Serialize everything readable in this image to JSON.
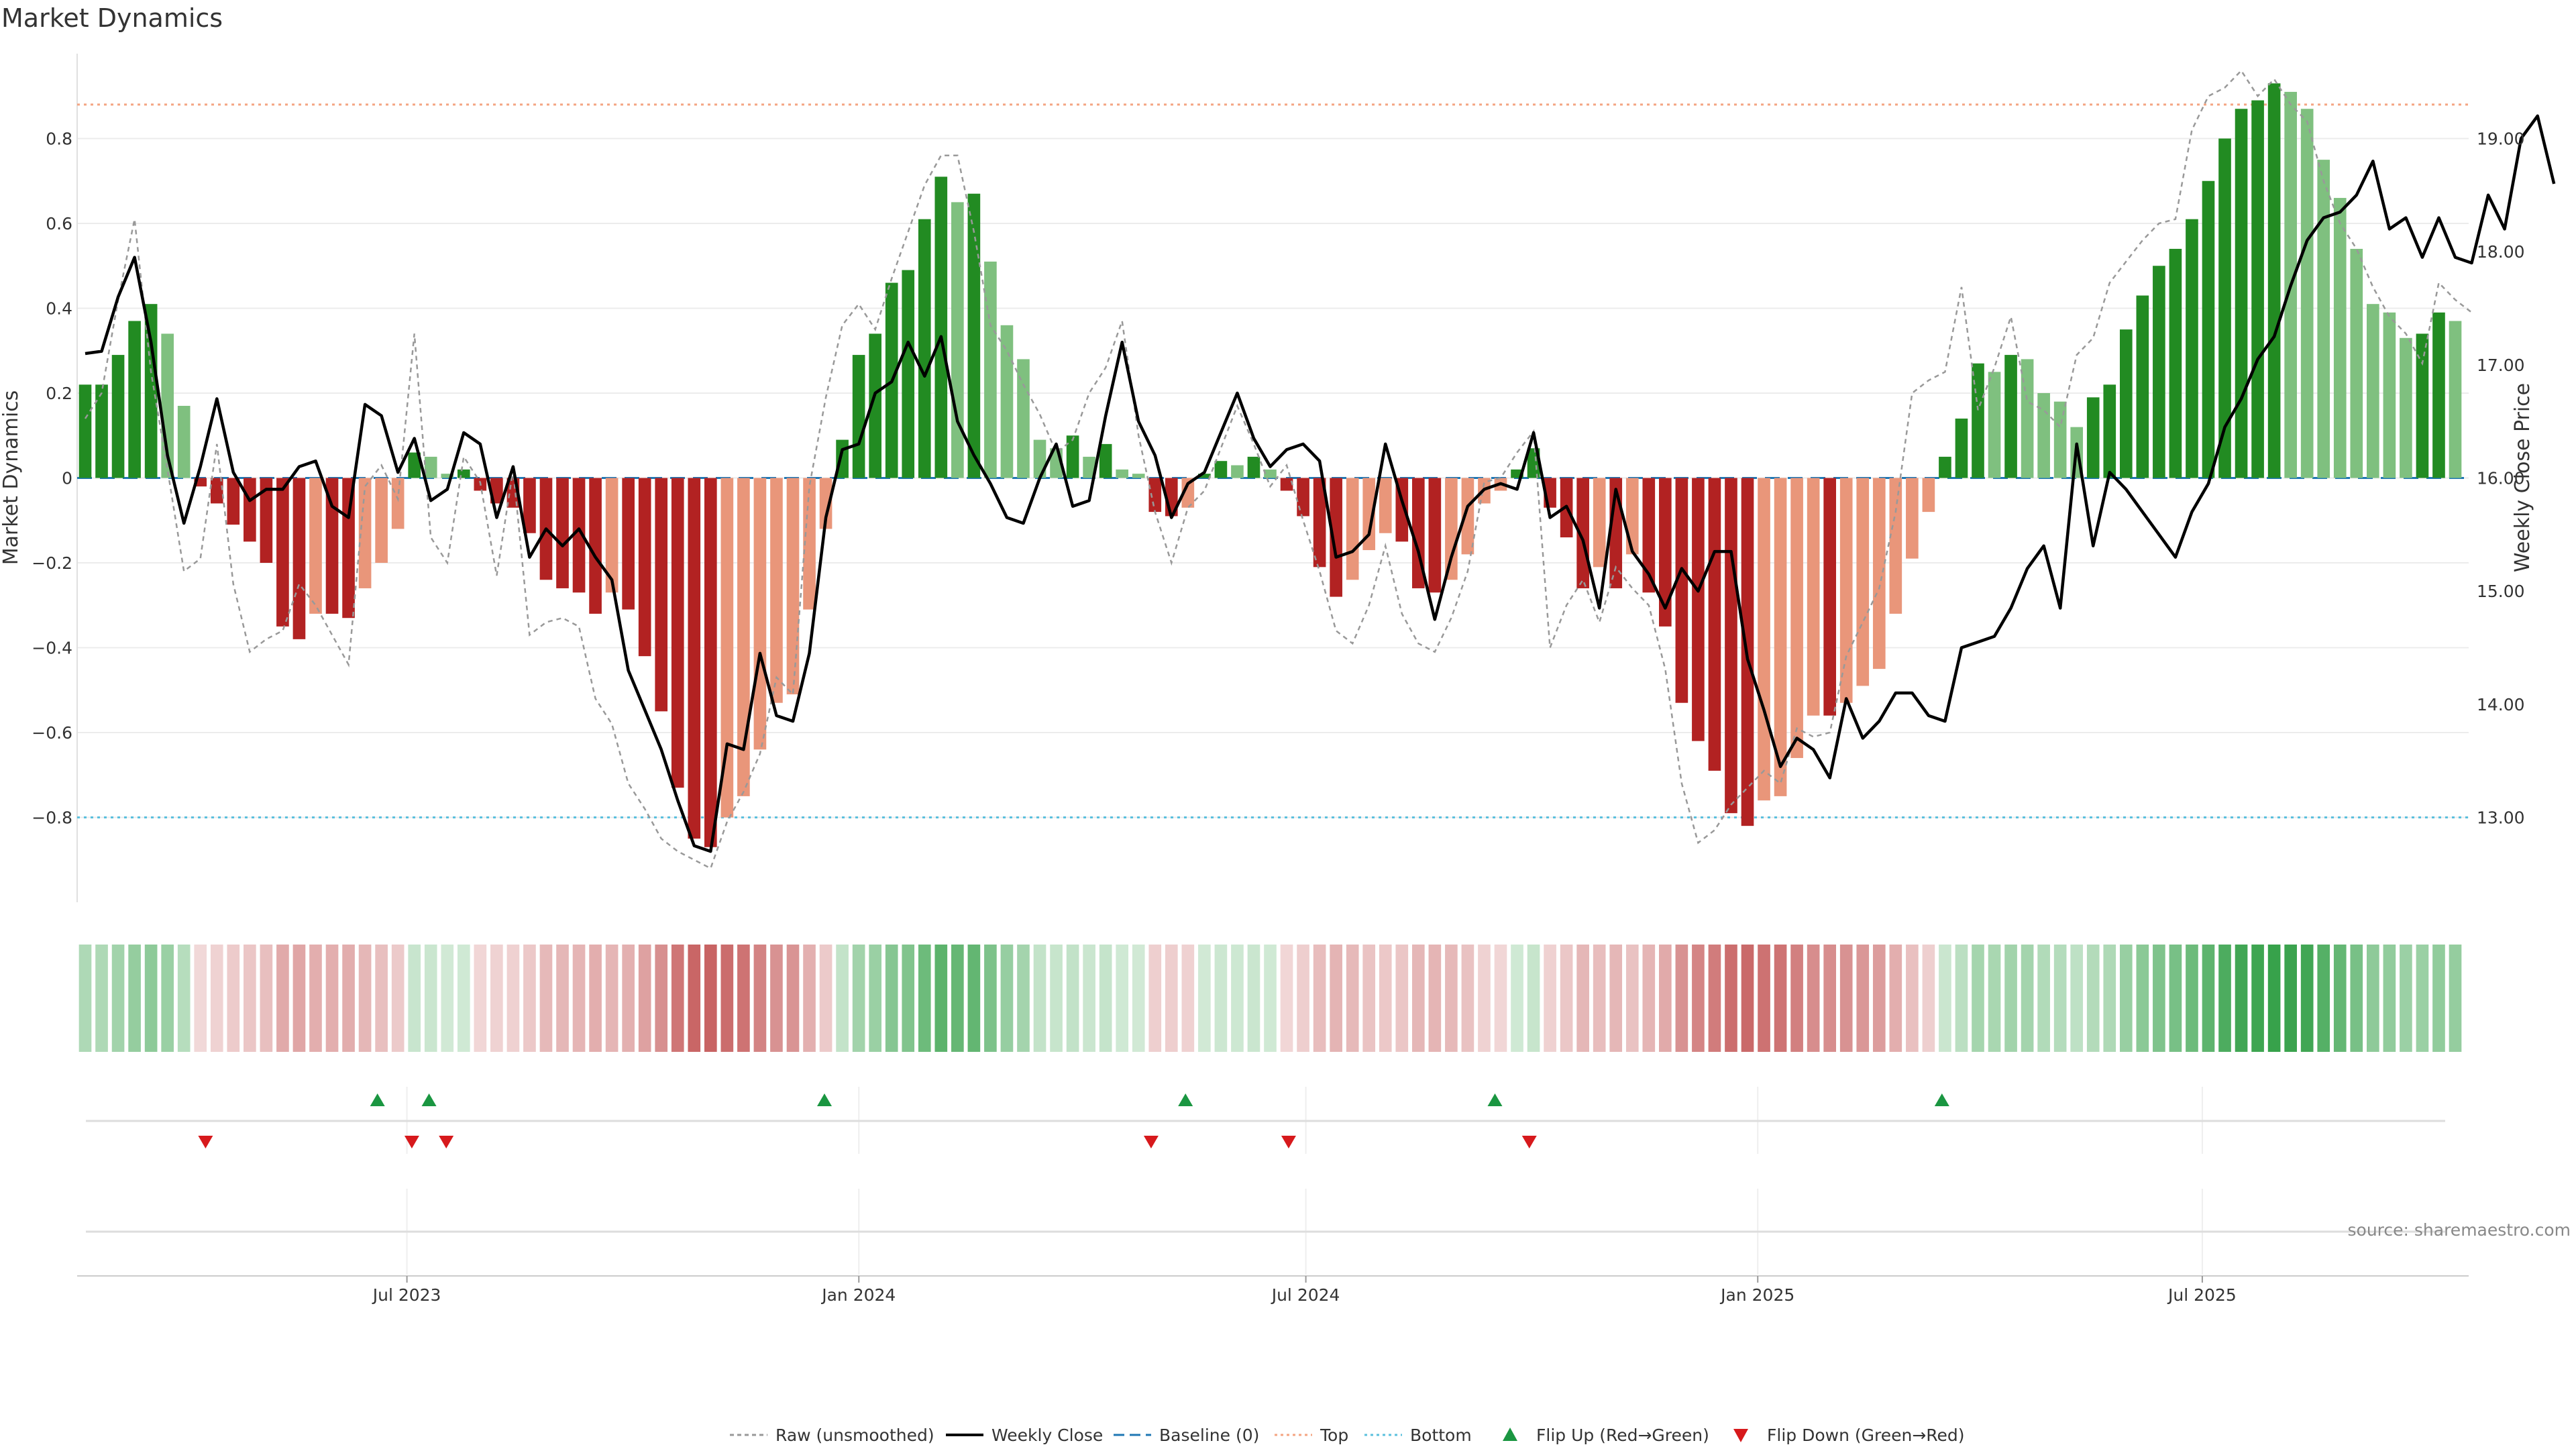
{
  "title": "Market Dynamics",
  "source_note": "source: sharemaestro.com",
  "colors": {
    "strong_green": "#228B22",
    "light_green": "#7FC07F",
    "strong_red": "#B22222",
    "light_red": "#E9967A",
    "close_line": "#000000",
    "raw_line": "#999999",
    "baseline": "#1F77B4",
    "top": "#F4A582",
    "bottom": "#5BC0DE",
    "flip_up": "#1A9641",
    "flip_down": "#D7191C"
  },
  "chart_data": {
    "type": "bar+line",
    "title": "Market Dynamics",
    "ylabel_left": "Market Dynamics",
    "ylabel_right": "Weekly Close Price",
    "y_left_range": [
      -1.0,
      1.0
    ],
    "y_left_ticks": [
      -0.8,
      -0.6,
      -0.4,
      -0.2,
      0,
      0.2,
      0.4,
      0.6,
      0.8
    ],
    "y_left_tick_labels": [
      "−0.8",
      "−0.6",
      "−0.4",
      "−0.2",
      "0",
      "0.2",
      "0.4",
      "0.6",
      "0.8"
    ],
    "y_right_range": [
      12.25,
      19.75
    ],
    "y_right_ticks": [
      13,
      14,
      15,
      16,
      17,
      18,
      19
    ],
    "y_right_tick_labels": [
      "13.00",
      "14.00",
      "15.00",
      "16.00",
      "17.00",
      "18.00",
      "19.00"
    ],
    "x_start": "2023-02-20",
    "x_end": "2025-10-12",
    "x_ticks": [
      "2023-07-01",
      "2024-01-01",
      "2024-07-01",
      "2025-01-01",
      "2025-07-01"
    ],
    "x_tick_labels": [
      "Jul 2023",
      "Jan 2024",
      "Jul 2024",
      "Jan 2025",
      "Jul 2025"
    ],
    "top_level": 0.88,
    "bottom_level": -0.8,
    "baseline_level": 0,
    "grid": true,
    "legend_position": "bottom-center",
    "legend": [
      "Raw (unsmoothed)",
      "Weekly Close",
      "Baseline (0)",
      "Top",
      "Bottom",
      "Flip Up (Red→Green)",
      "Flip Down (Green→Red)"
    ],
    "dynamics": [
      0.22,
      0.22,
      0.29,
      0.37,
      0.41,
      0.34,
      0.17,
      -0.02,
      -0.06,
      -0.11,
      -0.15,
      -0.2,
      -0.35,
      -0.38,
      -0.32,
      -0.32,
      -0.33,
      -0.26,
      -0.2,
      -0.12,
      0.06,
      0.05,
      0.01,
      0.02,
      -0.03,
      -0.06,
      -0.07,
      -0.13,
      -0.24,
      -0.26,
      -0.27,
      -0.32,
      -0.27,
      -0.31,
      -0.42,
      -0.55,
      -0.73,
      -0.85,
      -0.87,
      -0.8,
      -0.75,
      -0.64,
      -0.53,
      -0.51,
      -0.31,
      -0.12,
      0.09,
      0.29,
      0.34,
      0.46,
      0.49,
      0.61,
      0.71,
      0.65,
      0.67,
      0.51,
      0.36,
      0.28,
      0.09,
      0.07,
      0.1,
      0.05,
      0.08,
      0.02,
      0.01,
      -0.08,
      -0.09,
      -0.07,
      0.01,
      0.04,
      0.03,
      0.05,
      0.02,
      -0.03,
      -0.09,
      -0.21,
      -0.28,
      -0.24,
      -0.17,
      -0.13,
      -0.15,
      -0.26,
      -0.27,
      -0.24,
      -0.18,
      -0.06,
      -0.03,
      0.02,
      0.07,
      -0.07,
      -0.14,
      -0.26,
      -0.21,
      -0.26,
      -0.18,
      -0.27,
      -0.35,
      -0.53,
      -0.62,
      -0.69,
      -0.79,
      -0.82,
      -0.76,
      -0.75,
      -0.66,
      -0.56,
      -0.56,
      -0.53,
      -0.49,
      -0.45,
      -0.32,
      -0.19,
      -0.08,
      0.05,
      0.14,
      0.27,
      0.25,
      0.29,
      0.28,
      0.2,
      0.18,
      0.12,
      0.19,
      0.22,
      0.35,
      0.43,
      0.5,
      0.54,
      0.61,
      0.7,
      0.8,
      0.87,
      0.89,
      0.93,
      0.91,
      0.87,
      0.75,
      0.66,
      0.54,
      0.41,
      0.39,
      0.33,
      0.34,
      0.39,
      0.37
    ],
    "weekly_close": [
      17.1,
      17.12,
      17.6,
      17.95,
      17.2,
      16.2,
      15.6,
      16.1,
      16.7,
      16.05,
      15.8,
      15.9,
      15.9,
      16.1,
      16.15,
      15.75,
      15.65,
      16.65,
      16.55,
      16.05,
      16.35,
      15.8,
      15.9,
      16.4,
      16.3,
      15.65,
      16.1,
      15.3,
      15.55,
      15.4,
      15.55,
      15.3,
      15.1,
      14.3,
      13.95,
      13.6,
      13.15,
      12.75,
      12.7,
      13.65,
      13.6,
      14.45,
      13.9,
      13.85,
      14.45,
      15.65,
      16.25,
      16.3,
      16.75,
      16.85,
      17.2,
      16.9,
      17.25,
      16.5,
      16.2,
      15.95,
      15.65,
      15.6,
      16.0,
      16.3,
      15.75,
      15.8,
      16.55,
      17.2,
      16.5,
      16.2,
      15.65,
      15.95,
      16.05,
      16.4,
      16.75,
      16.35,
      16.1,
      16.25,
      16.3,
      16.15,
      15.3,
      15.35,
      15.5,
      16.3,
      15.8,
      15.35,
      14.75,
      15.3,
      15.75,
      15.9,
      15.95,
      15.9,
      16.4,
      15.65,
      15.75,
      15.45,
      14.85,
      15.9,
      15.35,
      15.15,
      14.85,
      15.2,
      15.0,
      15.35,
      15.35,
      14.4,
      13.95,
      13.45,
      13.7,
      13.6,
      13.35,
      14.05,
      13.7,
      13.85,
      14.1,
      14.1,
      13.9,
      13.85,
      14.5,
      14.55,
      14.6,
      14.85,
      15.2,
      15.4,
      14.85,
      16.3,
      15.4,
      16.05,
      15.9,
      15.7,
      15.5,
      15.3,
      15.7,
      15.95,
      16.45,
      16.7,
      17.05,
      17.25,
      17.7,
      18.1,
      18.3,
      18.35,
      18.5,
      18.8,
      18.2,
      18.3,
      17.95,
      18.3,
      17.95,
      17.9,
      18.5,
      18.2,
      19.0,
      19.2,
      18.6
    ],
    "raw_unsmoothed": [
      0.14,
      0.2,
      0.42,
      0.61,
      0.25,
      0.02,
      -0.22,
      -0.19,
      0.08,
      -0.25,
      -0.41,
      -0.38,
      -0.36,
      -0.25,
      -0.3,
      -0.37,
      -0.44,
      -0.02,
      0.03,
      -0.05,
      0.34,
      -0.14,
      -0.2,
      0.05,
      -0.01,
      -0.23,
      0.02,
      -0.37,
      -0.34,
      -0.33,
      -0.35,
      -0.52,
      -0.58,
      -0.72,
      -0.78,
      -0.85,
      -0.88,
      -0.9,
      -0.92,
      -0.81,
      -0.74,
      -0.65,
      -0.47,
      -0.51,
      -0.02,
      0.19,
      0.36,
      0.41,
      0.35,
      0.47,
      0.58,
      0.69,
      0.76,
      0.76,
      0.58,
      0.36,
      0.3,
      0.22,
      0.15,
      0.06,
      0.09,
      0.2,
      0.26,
      0.37,
      0.1,
      -0.08,
      -0.2,
      -0.07,
      -0.03,
      0.07,
      0.17,
      0.08,
      -0.02,
      0.03,
      -0.1,
      -0.22,
      -0.36,
      -0.39,
      -0.3,
      -0.16,
      -0.32,
      -0.39,
      -0.41,
      -0.33,
      -0.22,
      -0.01,
      0.0,
      0.06,
      0.11,
      -0.4,
      -0.3,
      -0.24,
      -0.34,
      -0.21,
      -0.26,
      -0.3,
      -0.45,
      -0.72,
      -0.86,
      -0.83,
      -0.77,
      -0.73,
      -0.69,
      -0.72,
      -0.59,
      -0.61,
      -0.6,
      -0.42,
      -0.34,
      -0.26,
      -0.08,
      0.2,
      0.23,
      0.25,
      0.45,
      0.16,
      0.26,
      0.38,
      0.18,
      0.16,
      0.12,
      0.29,
      0.33,
      0.46,
      0.51,
      0.56,
      0.6,
      0.61,
      0.82,
      0.9,
      0.92,
      0.96,
      0.9,
      0.94,
      0.88,
      0.84,
      0.7,
      0.6,
      0.54,
      0.45,
      0.38,
      0.34,
      0.27,
      0.46,
      0.42,
      0.39
    ],
    "flip_up_dates": [
      "2023-06-19",
      "2023-07-10",
      "2023-12-18",
      "2024-05-13",
      "2024-09-16",
      "2025-03-17"
    ],
    "flip_down_dates": [
      "2023-04-10",
      "2023-07-03",
      "2023-07-17",
      "2024-04-29",
      "2024-06-24",
      "2024-09-30"
    ]
  }
}
